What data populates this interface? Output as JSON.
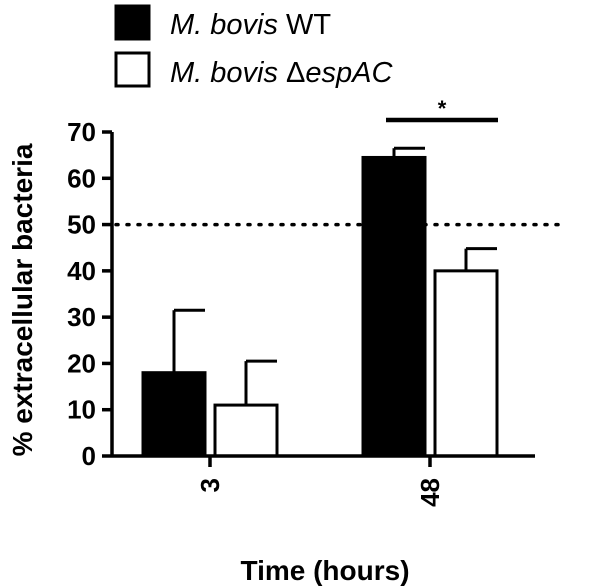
{
  "chart_data": {
    "type": "bar",
    "categories": [
      "3",
      "48"
    ],
    "series": [
      {
        "name": "M. bovis WT",
        "name_italic": "M. bovis",
        "name_rest": " WT",
        "fill": "#000000",
        "values": [
          18.0,
          64.5
        ],
        "errors": [
          13.5,
          2.0
        ]
      },
      {
        "name": "M. bovis ΔespAC",
        "name_italic": "M. bovis ",
        "name_rest_prefix": "Δ",
        "name_rest": "espAC",
        "fill": "#ffffff",
        "values": [
          11.0,
          40.0
        ],
        "errors": [
          9.5,
          4.8
        ]
      }
    ],
    "xlabel": "Time (hours)",
    "ylabel": "% extracellular bacteria",
    "ylim": [
      0,
      70
    ],
    "yticks": [
      "0",
      "10",
      "20",
      "30",
      "40",
      "50",
      "60",
      "70"
    ],
    "reference_line": 50,
    "significance": {
      "label": "*",
      "category_index": 1
    },
    "legend_position": "top"
  }
}
